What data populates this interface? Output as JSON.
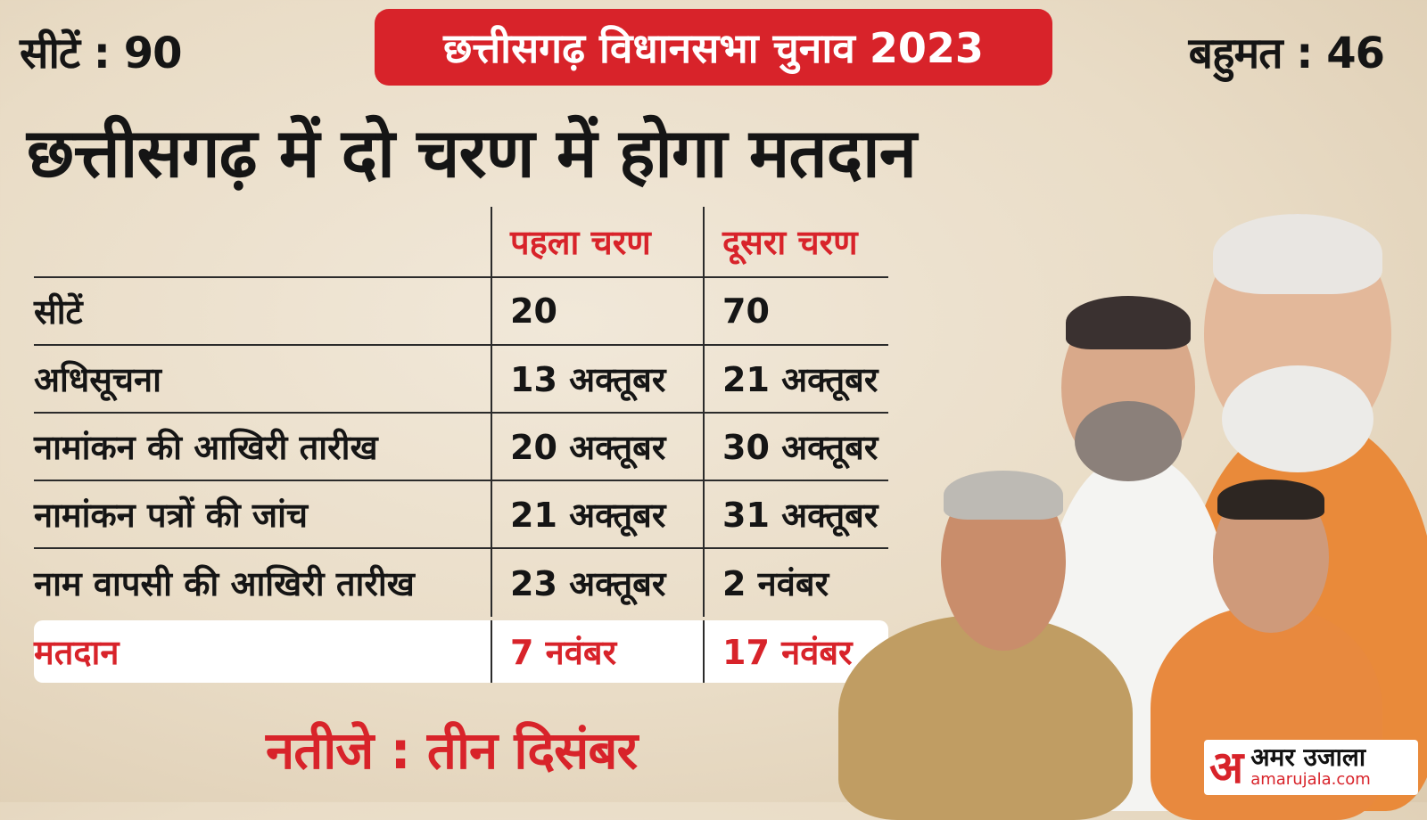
{
  "header": {
    "seats_text": "सीटें : 90",
    "tag_text": "छत्तीसगढ़ विधानसभा चुनाव 2023",
    "majority_text": "बहुमत : 46",
    "headline": "छत्तीसगढ़ में दो चरण में होगा मतदान"
  },
  "table": {
    "columns": [
      "",
      "पहला चरण",
      "दूसरा चरण"
    ],
    "rows": [
      {
        "label": "सीटें",
        "phase1": "20",
        "phase2": "70"
      },
      {
        "label": "अधिसूचना",
        "phase1": "13 अक्तूबर",
        "phase2": "21 अक्तूबर"
      },
      {
        "label": "नामांकन की आखिरी तारीख",
        "phase1": "20 अक्तूबर",
        "phase2": "30 अक्तूबर"
      },
      {
        "label": "नामांकन पत्रों की जांच",
        "phase1": "21 अक्तूबर",
        "phase2": "31 अक्तूबर"
      },
      {
        "label": "नाम वापसी की आखिरी तारीख",
        "phase1": "23 अक्तूबर",
        "phase2": "2 नवंबर"
      },
      {
        "label": "मतदान",
        "phase1": "7 नवंबर",
        "phase2": "17 नवंबर"
      }
    ]
  },
  "result_text": "नतीजे : तीन दिसंबर",
  "logo": {
    "mark": "अ",
    "name": "अमर उजाला",
    "url": "amarujala.com"
  },
  "colors": {
    "accent": "#d8232a",
    "background": "#ece2d2",
    "text": "#151515"
  }
}
